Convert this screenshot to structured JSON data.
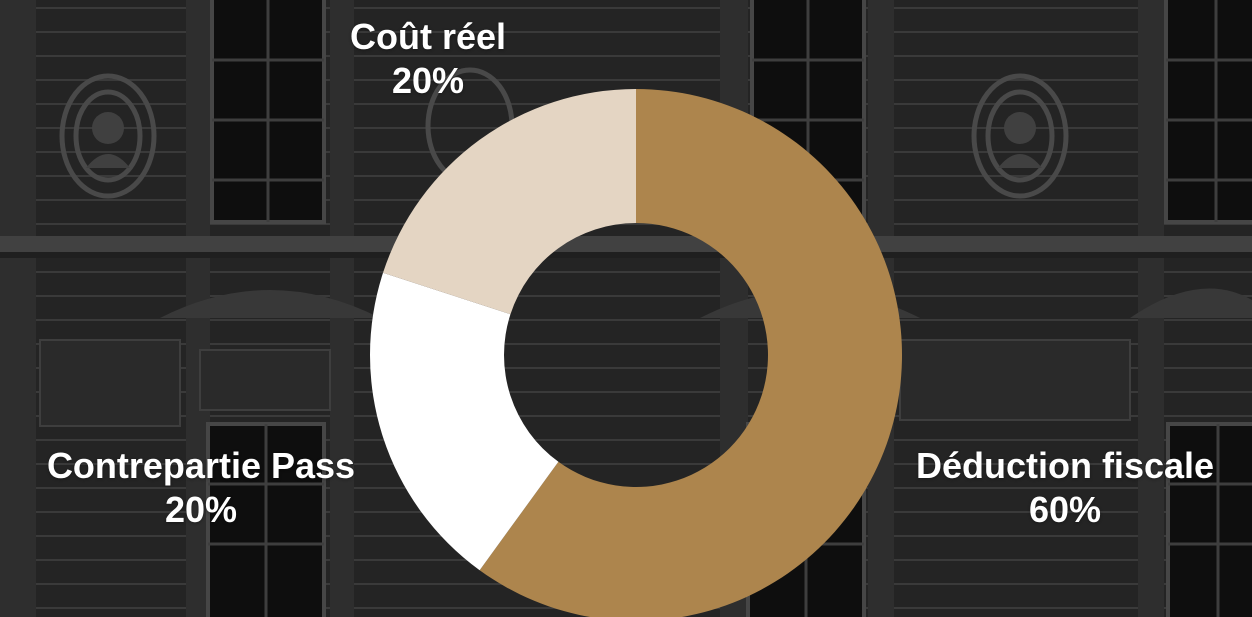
{
  "chart_data": {
    "type": "pie",
    "donut": true,
    "slices": [
      {
        "label": "Coût réel",
        "value": 20,
        "value_label": "20%",
        "color": "#e4d5c3"
      },
      {
        "label": "Contrepartie Pass",
        "value": 20,
        "value_label": "20%",
        "color": "#ffffff"
      },
      {
        "label": "Déduction fiscale",
        "value": 60,
        "value_label": "60%",
        "color": "#ad854d"
      }
    ],
    "legend": "none",
    "data_labels": "outside"
  },
  "background": {
    "description_colors": {
      "base": "#2c2c2c",
      "panel": "#3a3a3a",
      "line": "#4a4a4a",
      "window": "#111111"
    }
  }
}
